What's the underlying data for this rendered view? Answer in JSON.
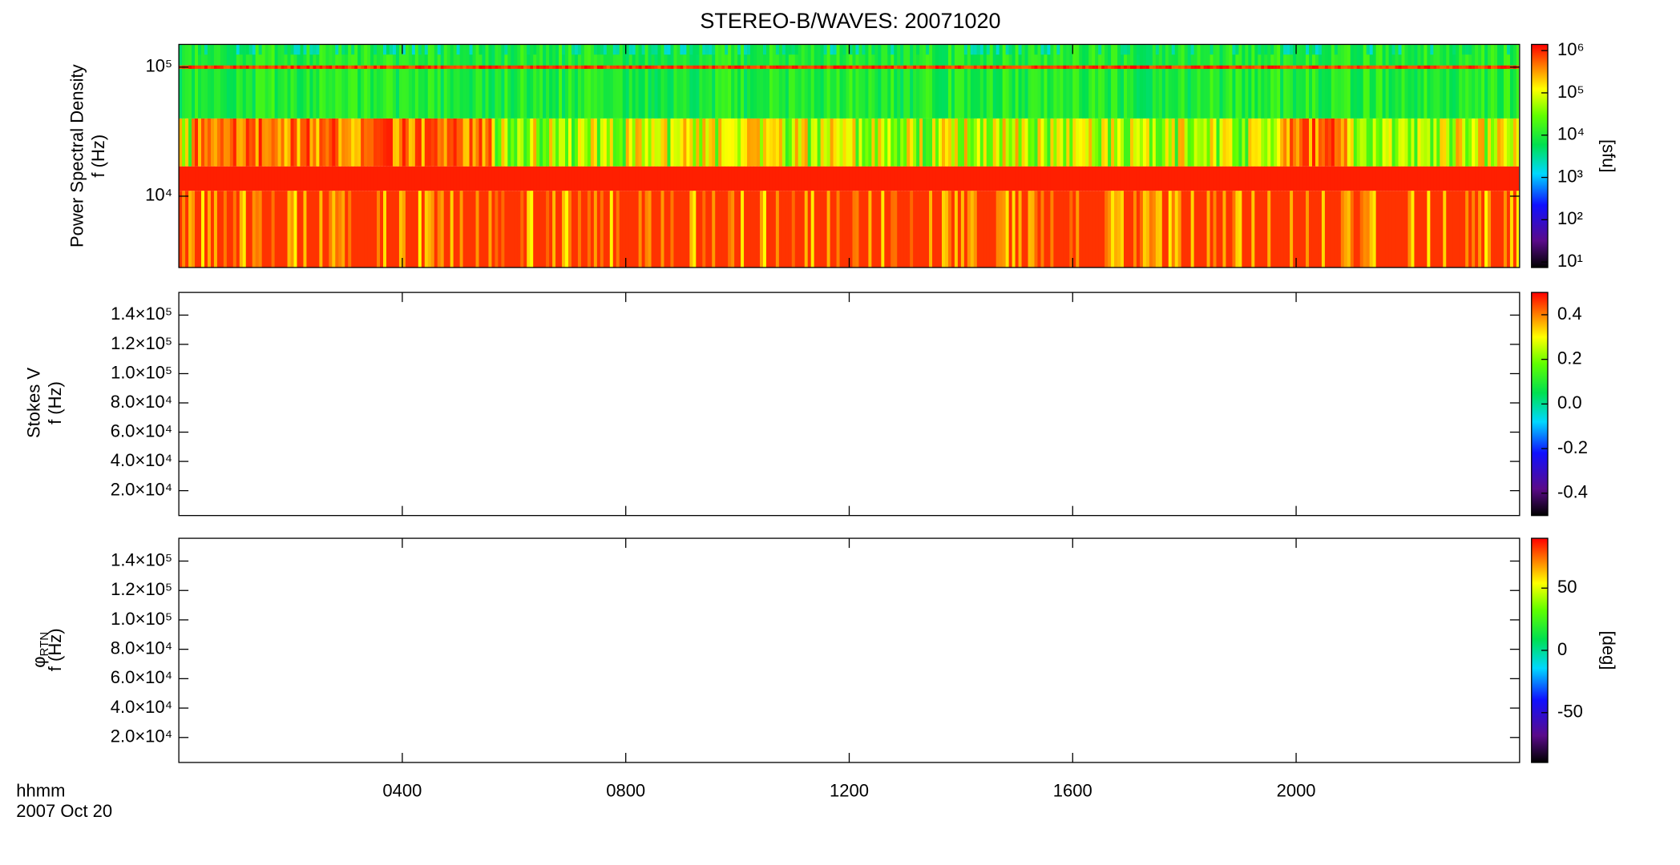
{
  "title": "STEREO-B/WAVES: 20071020",
  "x_axis": {
    "label": "hhmm",
    "date": "2007 Oct 20",
    "xlim": [
      0,
      24
    ],
    "xticks": [
      {
        "value": 4,
        "label": "0400"
      },
      {
        "value": 8,
        "label": "0800"
      },
      {
        "value": 12,
        "label": "1200"
      },
      {
        "value": 16,
        "label": "1600"
      },
      {
        "value": 20,
        "label": "2000"
      }
    ]
  },
  "chart_data": [
    {
      "type": "spectrogram",
      "ylabel": "Power Spectral Density",
      "ylabel2": "f (Hz)",
      "log_scale": true,
      "ylim": [
        2800,
        150000
      ],
      "yticks": [
        {
          "value": 10000,
          "label": "10⁴"
        },
        {
          "value": 100000,
          "label": "10⁵"
        }
      ],
      "colorbar": {
        "label": "[sfu]",
        "log_scale": true,
        "lim": [
          7.4,
          1400000
        ],
        "ticks": [
          {
            "value": 10,
            "label": "10¹"
          },
          {
            "value": 100,
            "label": "10²"
          },
          {
            "value": 1000,
            "label": "10³"
          },
          {
            "value": 10000,
            "label": "10⁴"
          },
          {
            "value": 100000,
            "label": "10⁵"
          },
          {
            "value": 1000000,
            "label": "10⁶"
          }
        ]
      }
    },
    {
      "type": "spectrogram",
      "ylabel": "Stokes V",
      "ylabel2": "f (Hz)",
      "log_scale": false,
      "ylim": [
        3000,
        155500
      ],
      "yticks": [
        {
          "value": 20000,
          "label": "2.0×10⁴"
        },
        {
          "value": 40000,
          "label": "4.0×10⁴"
        },
        {
          "value": 60000,
          "label": "6.0×10⁴"
        },
        {
          "value": 80000,
          "label": "8.0×10⁴"
        },
        {
          "value": 100000,
          "label": "1.0×10⁵"
        },
        {
          "value": 120000,
          "label": "1.2×10⁵"
        },
        {
          "value": 140000,
          "label": "1.4×10⁵"
        }
      ],
      "colorbar": {
        "log_scale": false,
        "lim": [
          -0.5,
          0.5
        ],
        "ticks": [
          {
            "value": -0.4,
            "label": "-0.4"
          },
          {
            "value": -0.2,
            "label": "-0.2"
          },
          {
            "value": 0,
            "label": "0.0"
          },
          {
            "value": 0.2,
            "label": "0.2"
          },
          {
            "value": 0.4,
            "label": "0.4"
          }
        ]
      }
    },
    {
      "type": "spectrogram",
      "ylabel": "φ",
      "ylabel_sub": "RTN",
      "ylabel2": "f (Hz)",
      "log_scale": false,
      "ylim": [
        3000,
        155500
      ],
      "yticks": [
        {
          "value": 20000,
          "label": "2.0×10⁴"
        },
        {
          "value": 40000,
          "label": "4.0×10⁴"
        },
        {
          "value": 60000,
          "label": "6.0×10⁴"
        },
        {
          "value": 80000,
          "label": "8.0×10⁴"
        },
        {
          "value": 100000,
          "label": "1.0×10⁵"
        },
        {
          "value": 120000,
          "label": "1.2×10⁵"
        },
        {
          "value": 140000,
          "label": "1.4×10⁵"
        }
      ],
      "colorbar": {
        "label": "[deg]",
        "log_scale": false,
        "lim": [
          -90,
          90
        ],
        "ticks": [
          -50,
          0,
          50
        ]
      }
    }
  ]
}
